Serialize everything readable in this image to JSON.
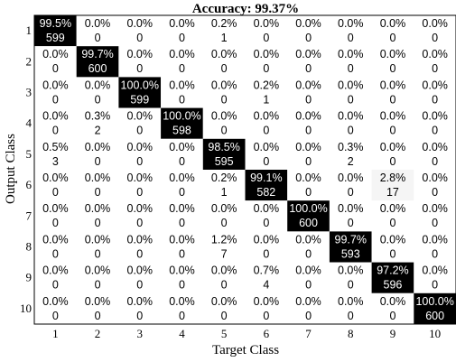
{
  "chart_data": {
    "type": "heatmap",
    "title": "Accuracy: 99.37%",
    "xlabel": "Target Class",
    "ylabel": "Output Class",
    "x_tick_labels": [
      "1",
      "2",
      "3",
      "4",
      "5",
      "6",
      "7",
      "8",
      "9",
      "10"
    ],
    "y_tick_labels": [
      "1",
      "2",
      "3",
      "4",
      "5",
      "6",
      "7",
      "8",
      "9",
      "10"
    ],
    "colors": {
      "diagonal_fill": "#000000",
      "diagonal_text": "#ffffff",
      "off_fill": "#ffffff",
      "off_text": "#000000",
      "highlight_fill": "#f5f5f5"
    },
    "percent": [
      [
        "99.5%",
        "0.0%",
        "0.0%",
        "0.0%",
        "0.2%",
        "0.0%",
        "0.0%",
        "0.0%",
        "0.0%",
        "0.0%"
      ],
      [
        "0.0%",
        "99.7%",
        "0.0%",
        "0.0%",
        "0.0%",
        "0.0%",
        "0.0%",
        "0.0%",
        "0.0%",
        "0.0%"
      ],
      [
        "0.0%",
        "0.0%",
        "100.0%",
        "0.0%",
        "0.0%",
        "0.2%",
        "0.0%",
        "0.0%",
        "0.0%",
        "0.0%"
      ],
      [
        "0.0%",
        "0.3%",
        "0.0%",
        "100.0%",
        "0.0%",
        "0.0%",
        "0.0%",
        "0.0%",
        "0.0%",
        "0.0%"
      ],
      [
        "0.5%",
        "0.0%",
        "0.0%",
        "0.0%",
        "98.5%",
        "0.0%",
        "0.0%",
        "0.3%",
        "0.0%",
        "0.0%"
      ],
      [
        "0.0%",
        "0.0%",
        "0.0%",
        "0.0%",
        "0.2%",
        "99.1%",
        "0.0%",
        "0.0%",
        "2.8%",
        "0.0%"
      ],
      [
        "0.0%",
        "0.0%",
        "0.0%",
        "0.0%",
        "0.0%",
        "0.0%",
        "100.0%",
        "0.0%",
        "0.0%",
        "0.0%"
      ],
      [
        "0.0%",
        "0.0%",
        "0.0%",
        "0.0%",
        "1.2%",
        "0.0%",
        "0.0%",
        "99.7%",
        "0.0%",
        "0.0%"
      ],
      [
        "0.0%",
        "0.0%",
        "0.0%",
        "0.0%",
        "0.0%",
        "0.7%",
        "0.0%",
        "0.0%",
        "97.2%",
        "0.0%"
      ],
      [
        "0.0%",
        "0.0%",
        "0.0%",
        "0.0%",
        "0.0%",
        "0.0%",
        "0.0%",
        "0.0%",
        "0.0%",
        "100.0%"
      ]
    ],
    "counts": [
      [
        599,
        0,
        0,
        0,
        1,
        0,
        0,
        0,
        0,
        0
      ],
      [
        0,
        600,
        0,
        0,
        0,
        0,
        0,
        0,
        0,
        0
      ],
      [
        0,
        0,
        599,
        0,
        0,
        1,
        0,
        0,
        0,
        0
      ],
      [
        0,
        2,
        0,
        598,
        0,
        0,
        0,
        0,
        0,
        0
      ],
      [
        3,
        0,
        0,
        0,
        595,
        0,
        0,
        2,
        0,
        0
      ],
      [
        0,
        0,
        0,
        0,
        1,
        582,
        0,
        0,
        17,
        0
      ],
      [
        0,
        0,
        0,
        0,
        0,
        0,
        600,
        0,
        0,
        0
      ],
      [
        0,
        0,
        0,
        0,
        7,
        0,
        0,
        593,
        0,
        0
      ],
      [
        0,
        0,
        0,
        0,
        0,
        4,
        0,
        0,
        596,
        0
      ],
      [
        0,
        0,
        0,
        0,
        0,
        0,
        0,
        0,
        0,
        600
      ]
    ],
    "highlight_cells": [
      [
        5,
        8
      ]
    ]
  }
}
